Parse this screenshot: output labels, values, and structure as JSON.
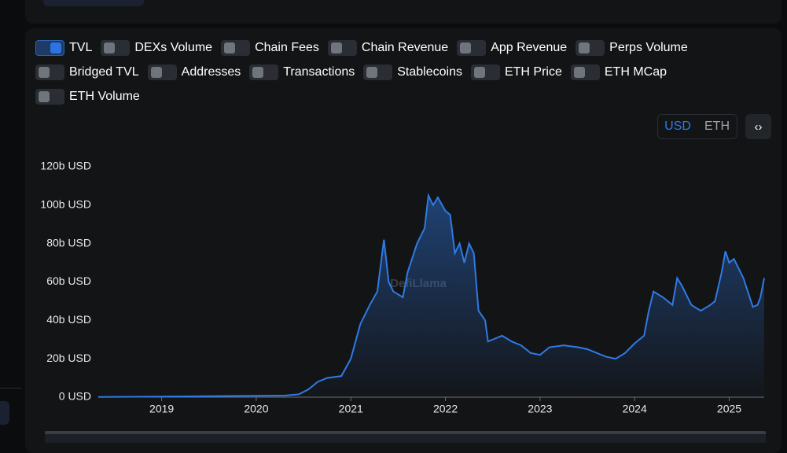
{
  "toggles": [
    {
      "label": "TVL",
      "on": true
    },
    {
      "label": "DEXs Volume",
      "on": false
    },
    {
      "label": "Chain Fees",
      "on": false
    },
    {
      "label": "Chain Revenue",
      "on": false
    },
    {
      "label": "App Revenue",
      "on": false
    },
    {
      "label": "Perps Volume",
      "on": false
    },
    {
      "label": "Bridged TVL",
      "on": false
    },
    {
      "label": "Addresses",
      "on": false
    },
    {
      "label": "Transactions",
      "on": false
    },
    {
      "label": "Stablecoins",
      "on": false
    },
    {
      "label": "ETH Price",
      "on": false
    },
    {
      "label": "ETH MCap",
      "on": false
    },
    {
      "label": "ETH Volume",
      "on": false
    }
  ],
  "currency": {
    "options": [
      "USD",
      "ETH"
    ],
    "selected": 0
  },
  "code_button": "‹›",
  "watermark": "DefiLlama",
  "chart_data": {
    "type": "area",
    "xlim": [
      2018.33,
      2025.37
    ],
    "xticks": [
      2019,
      2020,
      2021,
      2022,
      2023,
      2024,
      2025
    ],
    "ylim": [
      0,
      120
    ],
    "yticks": [
      {
        "value": 0,
        "label": "0 USD"
      },
      {
        "value": 20,
        "label": "20b USD"
      },
      {
        "value": 40,
        "label": "40b USD"
      },
      {
        "value": 60,
        "label": "60b USD"
      },
      {
        "value": 80,
        "label": "80b USD"
      },
      {
        "value": 100,
        "label": "100b USD"
      },
      {
        "value": 120,
        "label": "120b USD"
      }
    ],
    "x": [
      2018.33,
      2019,
      2019.5,
      2020,
      2020.3,
      2020.45,
      2020.55,
      2020.65,
      2020.75,
      2020.9,
      2021,
      2021.1,
      2021.2,
      2021.28,
      2021.35,
      2021.4,
      2021.45,
      2021.55,
      2021.6,
      2021.7,
      2021.78,
      2021.82,
      2021.87,
      2021.92,
      2022,
      2022.05,
      2022.1,
      2022.15,
      2022.2,
      2022.25,
      2022.3,
      2022.35,
      2022.42,
      2022.45,
      2022.5,
      2022.6,
      2022.7,
      2022.8,
      2022.85,
      2022.9,
      2023,
      2023.1,
      2023.25,
      2023.4,
      2023.5,
      2023.6,
      2023.7,
      2023.8,
      2023.9,
      2024,
      2024.1,
      2024.15,
      2024.2,
      2024.3,
      2024.4,
      2024.45,
      2024.5,
      2024.6,
      2024.7,
      2024.8,
      2024.85,
      2024.92,
      2024.96,
      2025,
      2025.05,
      2025.15,
      2025.25,
      2025.3,
      2025.33,
      2025.37
    ],
    "series": [
      {
        "name": "TVL",
        "color": "#2f7ae5",
        "values": [
          0.1,
          0.3,
          0.5,
          0.7,
          0.8,
          1.5,
          4,
          8,
          10,
          11,
          20,
          38,
          48,
          55,
          82,
          60,
          55,
          52,
          65,
          80,
          88,
          105,
          100,
          104,
          97,
          95,
          75,
          80,
          70,
          80,
          75,
          45,
          40,
          29,
          30,
          32,
          29,
          27,
          25,
          23,
          22,
          26,
          27,
          26,
          25,
          23,
          21,
          20,
          23,
          28,
          32,
          45,
          55,
          52,
          48,
          62,
          58,
          48,
          45,
          48,
          50,
          65,
          76,
          70,
          72,
          62,
          47,
          48,
          52,
          62
        ]
      }
    ]
  }
}
